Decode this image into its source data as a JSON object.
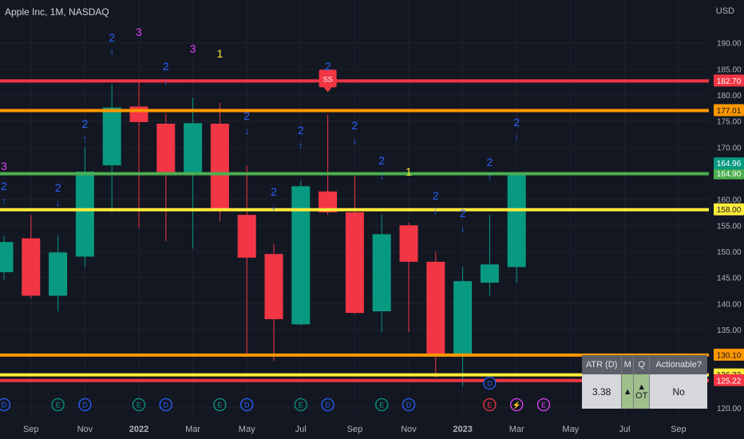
{
  "header": {
    "symbol_title": "Apple Inc, 1M, NASDAQ",
    "currency": "USD"
  },
  "chart_data": {
    "type": "candlestick",
    "title": "Apple Inc, 1M, NASDAQ",
    "ylim": [
      116,
      197
    ],
    "y_ticks": [
      120,
      125,
      130,
      135,
      140,
      145,
      150,
      155,
      160,
      165,
      170,
      175,
      180,
      185,
      190
    ],
    "x_tick_labels": [
      {
        "label": "Sep",
        "bar": 1,
        "bold": false
      },
      {
        "label": "Nov",
        "bar": 3,
        "bold": false
      },
      {
        "label": "2022",
        "bar": 5,
        "bold": true
      },
      {
        "label": "Mar",
        "bar": 7,
        "bold": false
      },
      {
        "label": "May",
        "bar": 9,
        "bold": false
      },
      {
        "label": "Jul",
        "bar": 11,
        "bold": false
      },
      {
        "label": "Sep",
        "bar": 13,
        "bold": false
      },
      {
        "label": "Nov",
        "bar": 15,
        "bold": false
      },
      {
        "label": "2023",
        "bar": 17,
        "bold": true
      },
      {
        "label": "Mar",
        "bar": 19,
        "bold": false
      },
      {
        "label": "May",
        "bar": 21,
        "bold": false
      },
      {
        "label": "Jul",
        "bar": 23,
        "bold": false
      },
      {
        "label": "Sep",
        "bar": 25,
        "bold": false
      }
    ],
    "candles": [
      {
        "bar": 0,
        "o": 146.0,
        "h": 153.0,
        "l": 144.5,
        "c": 151.8
      },
      {
        "bar": 1,
        "o": 152.5,
        "h": 157.0,
        "l": 141.0,
        "c": 141.5
      },
      {
        "bar": 2,
        "o": 141.5,
        "h": 153.0,
        "l": 138.5,
        "c": 149.8
      },
      {
        "bar": 3,
        "o": 149.0,
        "h": 170.0,
        "l": 147.0,
        "c": 165.3
      },
      {
        "bar": 4,
        "o": 166.5,
        "h": 182.0,
        "l": 157.5,
        "c": 177.6
      },
      {
        "bar": 5,
        "o": 177.8,
        "h": 183.0,
        "l": 154.5,
        "c": 174.8
      },
      {
        "bar": 6,
        "o": 174.5,
        "h": 176.5,
        "l": 152.0,
        "c": 165.0
      },
      {
        "bar": 7,
        "o": 165.0,
        "h": 179.5,
        "l": 150.5,
        "c": 174.6
      },
      {
        "bar": 8,
        "o": 174.5,
        "h": 178.5,
        "l": 155.8,
        "c": 157.8
      },
      {
        "bar": 9,
        "o": 157.0,
        "h": 166.5,
        "l": 130.0,
        "c": 148.8
      },
      {
        "bar": 10,
        "o": 149.5,
        "h": 151.5,
        "l": 129.0,
        "c": 137.0
      },
      {
        "bar": 11,
        "o": 136.0,
        "h": 163.5,
        "l": 135.8,
        "c": 162.5
      },
      {
        "bar": 12,
        "o": 161.5,
        "h": 176.2,
        "l": 157.0,
        "c": 157.5
      },
      {
        "bar": 13,
        "o": 157.5,
        "h": 164.5,
        "l": 138.0,
        "c": 138.2
      },
      {
        "bar": 14,
        "o": 138.5,
        "h": 157.0,
        "l": 134.5,
        "c": 153.3
      },
      {
        "bar": 15,
        "o": 155.0,
        "h": 155.5,
        "l": 134.5,
        "c": 148.0
      },
      {
        "bar": 16,
        "o": 148.0,
        "h": 150.0,
        "l": 125.8,
        "c": 129.9
      },
      {
        "bar": 17,
        "o": 130.3,
        "h": 147.0,
        "l": 124.2,
        "c": 144.3
      },
      {
        "bar": 18,
        "o": 144.0,
        "h": 157.0,
        "l": 141.5,
        "c": 147.5
      },
      {
        "bar": 19,
        "o": 147.0,
        "h": 165.0,
        "l": 144.0,
        "c": 164.9
      }
    ],
    "levels": [
      {
        "value": 182.7,
        "label": "182.70",
        "color": "#f23645",
        "text_color": "#ffffff"
      },
      {
        "value": 177.01,
        "label": "177.01",
        "color": "#ff9800",
        "text_color": "#131722"
      },
      {
        "value": 164.9,
        "label": "164.90",
        "color": "#4caf50",
        "text_color": "#ffffff"
      },
      {
        "value": 158.0,
        "label": "158.00",
        "color": "#ffeb3b",
        "text_color": "#131722"
      },
      {
        "value": 130.1,
        "label": "130.10",
        "color": "#ff9800",
        "text_color": "#131722"
      },
      {
        "value": 126.32,
        "label": "126.32",
        "color": "#ffeb3b",
        "text_color": "#131722"
      },
      {
        "value": 125.22,
        "label": "125.22",
        "color": "#f23645",
        "text_color": "#ffffff"
      }
    ],
    "price_tag": {
      "value": 164.96,
      "label": "164.96",
      "color": "#089981"
    },
    "annotations": [
      {
        "bar": 0,
        "text": "2",
        "arrow": "up",
        "color": "#2962ff"
      },
      {
        "bar": 0,
        "text": "3",
        "arrow": "",
        "color": "#e040fb"
      },
      {
        "bar": 2,
        "text": "2",
        "arrow": "down",
        "color": "#2962ff"
      },
      {
        "bar": 3,
        "text": "2",
        "arrow": "up",
        "color": "#2962ff"
      },
      {
        "bar": 4,
        "text": "2",
        "arrow": "up",
        "color": "#2962ff"
      },
      {
        "bar": 5,
        "text": "3",
        "arrow": "",
        "color": "#e040fb"
      },
      {
        "bar": 6,
        "text": "2",
        "arrow": "down",
        "color": "#2962ff"
      },
      {
        "bar": 7,
        "text": "3",
        "arrow": "",
        "color": "#e040fb"
      },
      {
        "bar": 8,
        "text": "1",
        "arrow": "",
        "color": "#ffeb3b"
      },
      {
        "bar": 9,
        "text": "2",
        "arrow": "down",
        "color": "#2962ff"
      },
      {
        "bar": 10,
        "text": "2",
        "arrow": "down",
        "color": "#2962ff"
      },
      {
        "bar": 11,
        "text": "2",
        "arrow": "up",
        "color": "#2962ff"
      },
      {
        "bar": 12,
        "text": "2",
        "arrow": "",
        "color": "#2962ff"
      },
      {
        "bar": 13,
        "text": "2",
        "arrow": "down",
        "color": "#2962ff"
      },
      {
        "bar": 14,
        "text": "2",
        "arrow": "down",
        "color": "#2962ff"
      },
      {
        "bar": 15,
        "text": "1",
        "arrow": "",
        "color": "#ffeb3b"
      },
      {
        "bar": 16,
        "text": "2",
        "arrow": "down",
        "color": "#2962ff"
      },
      {
        "bar": 17,
        "text": "2",
        "arrow": "down",
        "color": "#2962ff"
      },
      {
        "bar": 18,
        "text": "2",
        "arrow": "up",
        "color": "#2962ff"
      },
      {
        "bar": 19,
        "text": "2",
        "arrow": "up",
        "color": "#2962ff"
      }
    ],
    "ss_marker": {
      "bar": 12,
      "text": "SS",
      "color": "#f23645"
    },
    "events": [
      {
        "bar": 0,
        "type": "D",
        "color": "#2962ff"
      },
      {
        "bar": 2,
        "type": "E",
        "color": "#089981"
      },
      {
        "bar": 3,
        "type": "D",
        "color": "#2962ff"
      },
      {
        "bar": 5,
        "type": "E",
        "color": "#089981"
      },
      {
        "bar": 6,
        "type": "D",
        "color": "#2962ff"
      },
      {
        "bar": 8,
        "type": "E",
        "color": "#089981"
      },
      {
        "bar": 9,
        "type": "D",
        "color": "#2962ff"
      },
      {
        "bar": 11,
        "type": "E",
        "color": "#089981"
      },
      {
        "bar": 12,
        "type": "D",
        "color": "#2962ff"
      },
      {
        "bar": 14,
        "type": "E",
        "color": "#089981"
      },
      {
        "bar": 15,
        "type": "D",
        "color": "#2962ff"
      },
      {
        "bar": 18,
        "type": "E",
        "color": "#f23645"
      },
      {
        "bar": 18,
        "type": "D",
        "color": "#2962ff",
        "row": "upper"
      },
      {
        "bar": 19,
        "type": "⚡",
        "color": "#e040fb"
      },
      {
        "bar": 20,
        "type": "E",
        "color": "#e040fb"
      }
    ]
  },
  "atr_table": {
    "headers": [
      "ATR (D)",
      "M",
      "Q",
      "Actionable?"
    ],
    "atr_value": "3.38",
    "m_symbol": "▲",
    "q_symbol": "▲",
    "q_sub": "OT",
    "actionable": "No"
  }
}
